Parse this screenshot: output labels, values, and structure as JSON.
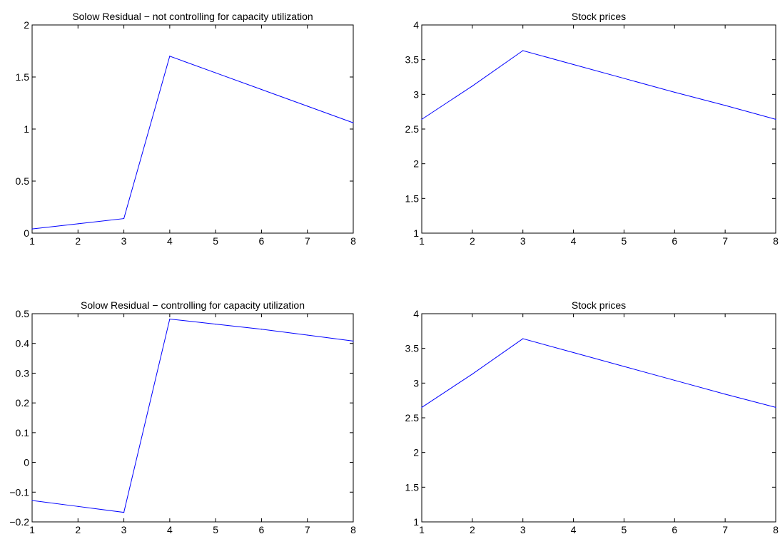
{
  "chart_data": [
    {
      "type": "line",
      "title": "Solow Residual − not controlling for capacity utilization",
      "xlabel": "",
      "ylabel": "",
      "xlim": [
        1,
        8
      ],
      "ylim": [
        0,
        2
      ],
      "xticks": [
        1,
        2,
        3,
        4,
        5,
        6,
        7,
        8
      ],
      "yticks": [
        0,
        0.5,
        1,
        1.5,
        2
      ],
      "ytick_labels": [
        "0",
        "0.5",
        "1",
        "1.5",
        "2"
      ],
      "grid": false,
      "series": [
        {
          "x": [
            1,
            2,
            3,
            4,
            5,
            6,
            7,
            8
          ],
          "values": [
            0.04,
            0.09,
            0.14,
            1.7,
            1.54,
            1.38,
            1.22,
            1.06
          ],
          "color": "#0000ff"
        }
      ]
    },
    {
      "type": "line",
      "title": "Stock prices",
      "xlabel": "",
      "ylabel": "",
      "xlim": [
        1,
        8
      ],
      "ylim": [
        1,
        4
      ],
      "xticks": [
        1,
        2,
        3,
        4,
        5,
        6,
        7,
        8
      ],
      "yticks": [
        1,
        1.5,
        2,
        2.5,
        3,
        3.5,
        4
      ],
      "ytick_labels": [
        "1",
        "1.5",
        "2",
        "2.5",
        "3",
        "3.5",
        "4"
      ],
      "grid": false,
      "series": [
        {
          "x": [
            1,
            2,
            3,
            4,
            5,
            6,
            7,
            8
          ],
          "values": [
            2.64,
            3.12,
            3.63,
            3.43,
            3.23,
            3.03,
            2.84,
            2.64
          ],
          "color": "#0000ff"
        }
      ]
    },
    {
      "type": "line",
      "title": "Solow Residual − controlling for capacity utilization",
      "xlabel": "",
      "ylabel": "",
      "xlim": [
        1,
        8
      ],
      "ylim": [
        -0.2,
        0.5
      ],
      "xticks": [
        1,
        2,
        3,
        4,
        5,
        6,
        7,
        8
      ],
      "yticks": [
        -0.2,
        -0.1,
        0,
        0.1,
        0.2,
        0.3,
        0.4,
        0.5
      ],
      "ytick_labels": [
        "−0.2",
        "−0.1",
        "0",
        "0.1",
        "0.2",
        "0.3",
        "0.4",
        "0.5"
      ],
      "grid": false,
      "series": [
        {
          "x": [
            1,
            2,
            3,
            4,
            5,
            6,
            7,
            8
          ],
          "values": [
            -0.128,
            -0.148,
            -0.168,
            0.482,
            0.465,
            0.448,
            0.428,
            0.408
          ],
          "color": "#0000ff"
        }
      ]
    },
    {
      "type": "line",
      "title": "Stock prices",
      "xlabel": "",
      "ylabel": "",
      "xlim": [
        1,
        8
      ],
      "ylim": [
        1,
        4
      ],
      "xticks": [
        1,
        2,
        3,
        4,
        5,
        6,
        7,
        8
      ],
      "yticks": [
        1,
        1.5,
        2,
        2.5,
        3,
        3.5,
        4
      ],
      "ytick_labels": [
        "1",
        "1.5",
        "2",
        "2.5",
        "3",
        "3.5",
        "4"
      ],
      "grid": false,
      "series": [
        {
          "x": [
            1,
            2,
            3,
            4,
            5,
            6,
            7,
            8
          ],
          "values": [
            2.65,
            3.13,
            3.64,
            3.44,
            3.24,
            3.04,
            2.84,
            2.65
          ],
          "color": "#0000ff"
        }
      ]
    }
  ]
}
